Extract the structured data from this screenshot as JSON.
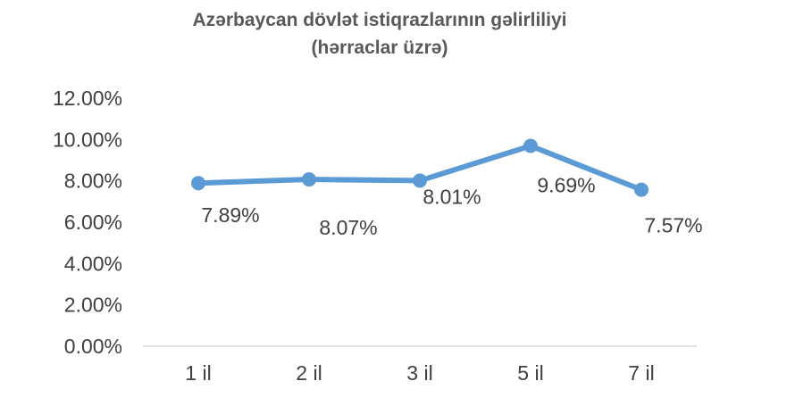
{
  "chart_data": {
    "type": "line",
    "title": "Azərbaycan dövlət istiqrazlarının gəlirliliyi",
    "subtitle": "(hərraclar üzrə)",
    "categories": [
      "1 il",
      "2 il",
      "3 il",
      "5 il",
      "7 il"
    ],
    "series": [
      {
        "values": [
          7.89,
          8.07,
          8.01,
          9.69,
          7.57
        ],
        "labels": [
          "7.89%",
          "8.07%",
          "8.01%",
          "9.69%",
          "7.57%"
        ]
      }
    ],
    "y_ticks": [
      "0.00%",
      "2.00%",
      "4.00%",
      "6.00%",
      "8.00%",
      "10.00%",
      "12.00%"
    ],
    "ylim": [
      0,
      12
    ],
    "grid": false,
    "legend": "none",
    "colors": {
      "line": "#5b9bd5",
      "axis": "#d9d9d9",
      "text": "#404040",
      "title": "#595959"
    }
  }
}
